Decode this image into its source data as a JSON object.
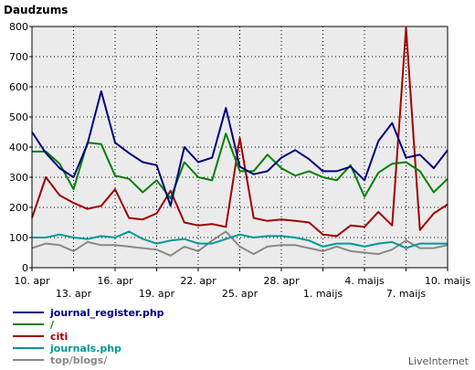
{
  "chart_data": {
    "type": "line",
    "title": "Daudzums",
    "ylim": [
      0,
      800
    ],
    "yticks": [
      0,
      100,
      200,
      300,
      400,
      500,
      600,
      700,
      800
    ],
    "x_count": 31,
    "xticks": [
      {
        "i": 0,
        "label": "10. apr",
        "row": 0
      },
      {
        "i": 3,
        "label": "13. apr",
        "row": 1
      },
      {
        "i": 6,
        "label": "16. apr",
        "row": 0
      },
      {
        "i": 9,
        "label": "19. apr",
        "row": 1
      },
      {
        "i": 12,
        "label": "22. apr",
        "row": 0
      },
      {
        "i": 15,
        "label": "25. apr",
        "row": 1
      },
      {
        "i": 18,
        "label": "28. apr",
        "row": 0
      },
      {
        "i": 21,
        "label": "1. maijs",
        "row": 1
      },
      {
        "i": 24,
        "label": "4. maijs",
        "row": 0
      },
      {
        "i": 27,
        "label": "7. maijs",
        "row": 1
      },
      {
        "i": 30,
        "label": "10. maijs",
        "row": 0
      }
    ],
    "grid": true,
    "background": "#ebebeb",
    "series": [
      {
        "name": "journal_register.php",
        "color": "#000080",
        "values": [
          450,
          380,
          330,
          300,
          410,
          585,
          415,
          380,
          350,
          340,
          205,
          400,
          350,
          365,
          530,
          335,
          310,
          320,
          365,
          390,
          360,
          320,
          320,
          335,
          290,
          420,
          480,
          365,
          375,
          330,
          390
        ]
      },
      {
        "name": "/",
        "color": "#008000",
        "values": [
          385,
          385,
          345,
          260,
          415,
          410,
          305,
          295,
          250,
          290,
          230,
          350,
          300,
          290,
          445,
          320,
          320,
          375,
          330,
          305,
          320,
          300,
          290,
          340,
          235,
          315,
          345,
          350,
          320,
          250,
          295
        ]
      },
      {
        "name": "citi",
        "color": "#a00000",
        "values": [
          165,
          300,
          240,
          215,
          195,
          205,
          260,
          165,
          160,
          180,
          255,
          150,
          140,
          145,
          135,
          430,
          165,
          155,
          160,
          155,
          150,
          110,
          105,
          140,
          135,
          185,
          140,
          795,
          125,
          180,
          210
        ]
      },
      {
        "name": "journals.php",
        "color": "#009999",
        "values": [
          100,
          100,
          110,
          100,
          95,
          105,
          100,
          120,
          95,
          80,
          90,
          95,
          80,
          80,
          95,
          110,
          100,
          105,
          105,
          100,
          90,
          70,
          80,
          80,
          70,
          80,
          85,
          65,
          80,
          80,
          80
        ]
      },
      {
        "name": "top/blogs/",
        "color": "#888888",
        "values": [
          65,
          80,
          75,
          55,
          85,
          75,
          75,
          70,
          65,
          60,
          40,
          70,
          55,
          90,
          120,
          70,
          45,
          70,
          75,
          75,
          65,
          55,
          70,
          55,
          50,
          45,
          60,
          90,
          65,
          65,
          75
        ]
      }
    ]
  },
  "brand": "LiveInternet"
}
